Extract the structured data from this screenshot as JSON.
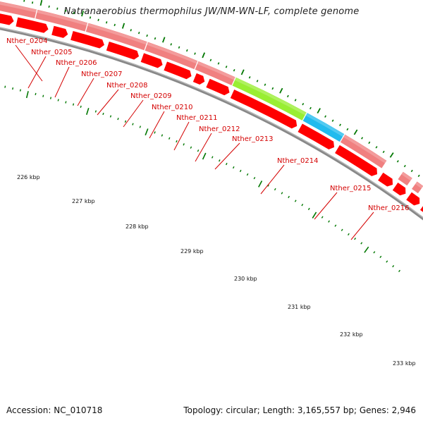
{
  "title": "Natranaerobius thermophilus JW/NM-WN-LF, complete genome",
  "footer": {
    "accession": "Accession: NC_010718",
    "info": "Topology: circular; Length: 3,165,557 bp; Genes: 2,946"
  },
  "colors": {
    "gene_pink": "#f08080",
    "gene_red": "#ff0000",
    "gene_green": "#99ee33",
    "gene_blue": "#22bbee",
    "label_red": "#d40000",
    "tick_green": "#007700",
    "backbone": "#888888"
  },
  "genes": [
    {
      "name": "Nther_0204"
    },
    {
      "name": "Nther_0205"
    },
    {
      "name": "Nther_0206"
    },
    {
      "name": "Nther_0207"
    },
    {
      "name": "Nther_0208"
    },
    {
      "name": "Nther_0209"
    },
    {
      "name": "Nther_0210"
    },
    {
      "name": "Nther_0211"
    },
    {
      "name": "Nther_0212"
    },
    {
      "name": "Nther_0213"
    },
    {
      "name": "Nther_0214"
    },
    {
      "name": "Nther_0215"
    },
    {
      "name": "Nther_0216"
    }
  ],
  "scale_labels": [
    "226 kbp",
    "227 kbp",
    "228 kbp",
    "229 kbp",
    "230 kbp",
    "231 kbp",
    "232 kbp",
    "233 kbp"
  ]
}
